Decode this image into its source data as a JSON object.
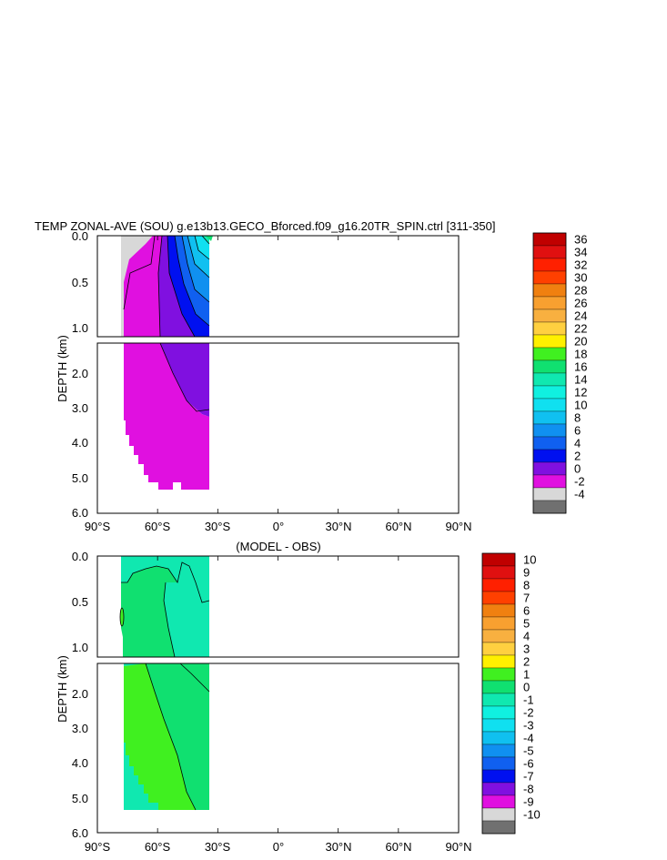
{
  "chart_data": [
    {
      "type": "contour",
      "title": "TEMP ZONAL-AVE (SOU) g.e13b13.GECO_Bforced.f09_g16.20TR_SPIN.ctrl [311-350]",
      "ylabel": "DEPTH (km)",
      "xlim": [
        -90,
        90
      ],
      "x_ticks": [
        "90°S",
        "60°S",
        "30°S",
        "0°",
        "30°N",
        "60°N",
        "90°N"
      ],
      "upper_panel": {
        "ylim": [
          0.0,
          1.1
        ],
        "y_ticks": [
          "0.0",
          "0.5",
          "1.0"
        ]
      },
      "lower_panel": {
        "ylim": [
          1.1,
          6.0
        ],
        "y_ticks": [
          "2.0",
          "3.0",
          "4.0",
          "5.0",
          "6.0"
        ]
      },
      "colorbar": {
        "levels": [
          "36",
          "34",
          "32",
          "30",
          "28",
          "26",
          "24",
          "22",
          "20",
          "18",
          "16",
          "14",
          "12",
          "10",
          "8",
          "6",
          "4",
          "2",
          "0",
          "-2",
          "-4"
        ],
        "colors": [
          "#c00000",
          "#e01010",
          "#ff2000",
          "#ff4000",
          "#f08010",
          "#f8a030",
          "#f8b040",
          "#ffd040",
          "#fff000",
          "#40f020",
          "#10e070",
          "#10e8b0",
          "#10f0e0",
          "#10e0f0",
          "#10c0f0",
          "#1090f0",
          "#1060f0",
          "#0010f0",
          "#8010e0",
          "#e010e0",
          "#d8d8d8",
          "#707070"
        ]
      }
    },
    {
      "type": "contour",
      "title": "(MODEL - OBS)",
      "ylabel": "DEPTH (km)",
      "xlim": [
        -90,
        90
      ],
      "x_ticks": [
        "90°S",
        "60°S",
        "30°S",
        "0°",
        "30°N",
        "60°N",
        "90°N"
      ],
      "upper_panel": {
        "ylim": [
          0.0,
          1.1
        ],
        "y_ticks": [
          "0.0",
          "0.5",
          "1.0"
        ]
      },
      "lower_panel": {
        "ylim": [
          1.1,
          6.0
        ],
        "y_ticks": [
          "2.0",
          "3.0",
          "4.0",
          "5.0",
          "6.0"
        ]
      },
      "colorbar": {
        "levels": [
          "10",
          "9",
          "8",
          "7",
          "6",
          "5",
          "4",
          "3",
          "2",
          "1",
          "0",
          "-1",
          "-2",
          "-3",
          "-4",
          "-5",
          "-6",
          "-7",
          "-8",
          "-9",
          "-10"
        ],
        "colors": [
          "#c00000",
          "#e01010",
          "#ff2000",
          "#ff4000",
          "#f08010",
          "#f8a030",
          "#f8b040",
          "#ffd040",
          "#fff000",
          "#40f020",
          "#10e070",
          "#10e8b0",
          "#10f0e0",
          "#10e0f0",
          "#10c0f0",
          "#1090f0",
          "#1060f0",
          "#0010f0",
          "#8010e0",
          "#e010e0",
          "#d8d8d8",
          "#707070"
        ]
      }
    }
  ]
}
